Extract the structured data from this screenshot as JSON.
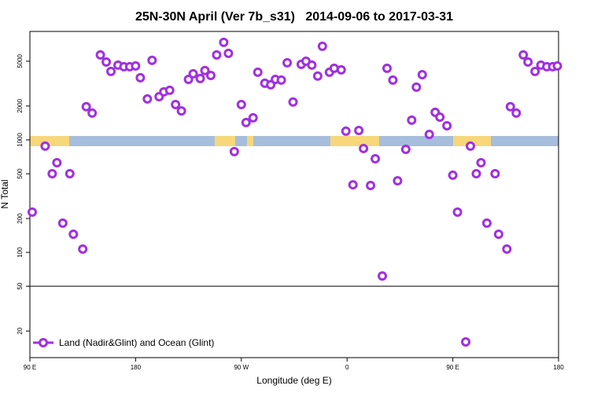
{
  "chart_data": {
    "type": "scatter",
    "title": "25N-30N April (Ver 7b_s31)   2014-09-06 to 2017-03-31",
    "x_label": "Longitude (deg E)",
    "y_label": "N Total",
    "yscale": "log",
    "xlim": [
      90,
      540
    ],
    "ylim": [
      11.6,
      9200
    ],
    "xticks": [
      {
        "value": 90,
        "label": "90 E"
      },
      180,
      {
        "value": 270,
        "label": "90 W"
      },
      {
        "value": 360,
        "label": "0"
      },
      {
        "value": 450,
        "label": "90 E"
      },
      {
        "value": 540,
        "label": "180"
      }
    ],
    "yticks": [
      20,
      50,
      100,
      200,
      500,
      1000,
      2000,
      5000
    ],
    "reference_line": 50,
    "legend": "bottom-left",
    "x": [
      92,
      103,
      109,
      113,
      118,
      124,
      127,
      135,
      138,
      143,
      150,
      155,
      159,
      165,
      170,
      175,
      180,
      184,
      190,
      194,
      200,
      204,
      209,
      214,
      219,
      225,
      229,
      235,
      239,
      244,
      249,
      255,
      259,
      264,
      270,
      274,
      280,
      284,
      290,
      295,
      299,
      304,
      309,
      314,
      321,
      325,
      330,
      335,
      339,
      345,
      349,
      355,
      359,
      365,
      370,
      374,
      380,
      384,
      390,
      394,
      399,
      403,
      410,
      415,
      419,
      424,
      430,
      435,
      439,
      445,
      450,
      454,
      461,
      465,
      470,
      474,
      479,
      486,
      489,
      496,
      499,
      504,
      510,
      514,
      520,
      525,
      530,
      535,
      539
    ],
    "series": [
      {
        "name": "Land (Nadir&Glint) and Ocean (Glint)",
        "color": "#a030e0",
        "values": [
          228,
          880,
          500,
          627,
          182,
          500,
          145,
          107,
          1970,
          1730,
          5690,
          4920,
          4060,
          4620,
          4470,
          4470,
          4540,
          3570,
          2310,
          5090,
          2420,
          2670,
          2760,
          2060,
          1810,
          3450,
          3870,
          3510,
          4130,
          3740,
          5690,
          7360,
          5880,
          786,
          2060,
          1425,
          1570,
          3990,
          3190,
          3090,
          3450,
          3400,
          4840,
          2170,
          4690,
          5000,
          4620,
          3690,
          6790,
          3990,
          4330,
          4190,
          1194,
          399,
          1213,
          838,
          393,
          679,
          61.7,
          4330,
          3400,
          433,
          824,
          1496,
          2940,
          3800,
          1119,
          1757,
          1594,
          1336,
          485,
          228,
          16,
          880,
          500,
          627,
          182,
          500,
          145,
          107,
          1970,
          1730,
          5690,
          4920,
          4060,
          4620,
          4470,
          4470,
          4540
        ]
      }
    ]
  }
}
